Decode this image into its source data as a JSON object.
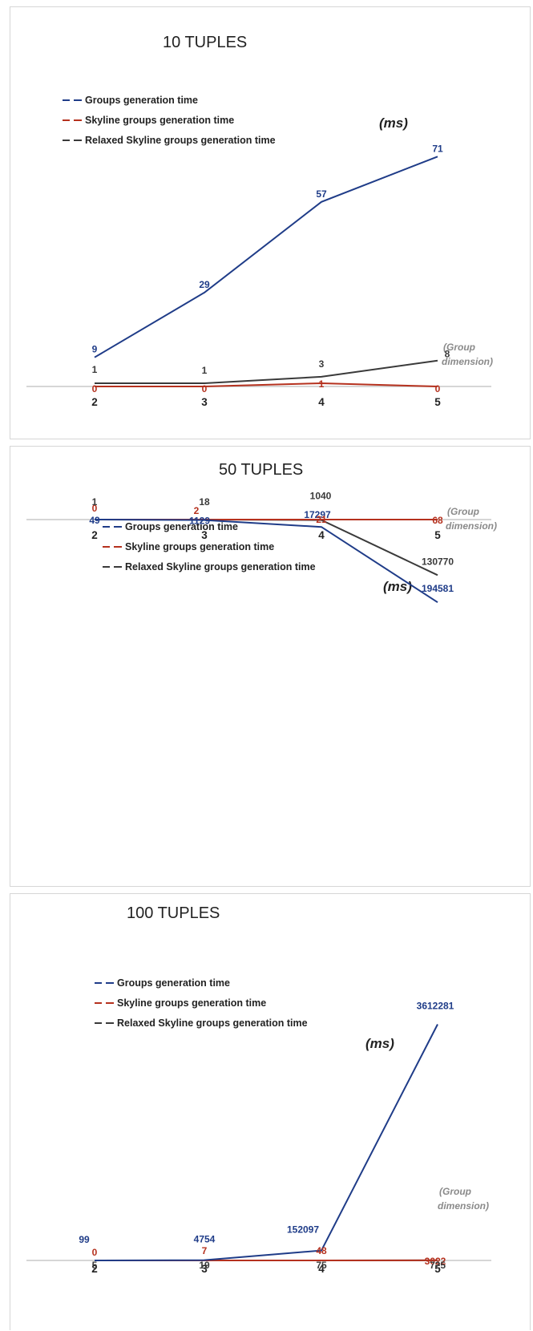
{
  "colors": {
    "groups": "#1f3c88",
    "skyline": "#b5311e",
    "relaxed": "#3a3a3a",
    "axis": "#c8c8c8"
  },
  "chart_data": [
    {
      "type": "line",
      "title": "10 TUPLES",
      "unit_label": "(ms)",
      "xlabel": "(Group dimension)",
      "x": [
        "2",
        "3",
        "4",
        "5"
      ],
      "ylim": [
        0,
        78
      ],
      "series": [
        {
          "name": "Groups generation time",
          "values": [
            9,
            29,
            57,
            71
          ],
          "labels": [
            "9",
            "29",
            "57",
            "71"
          ]
        },
        {
          "name": "Skyline groups generation time",
          "values": [
            0,
            0,
            1,
            0
          ],
          "labels": [
            "0",
            "0",
            "1",
            "0"
          ]
        },
        {
          "name": "Relaxed Skyline groups generation time",
          "values": [
            1,
            1,
            3,
            8
          ],
          "labels": [
            "1",
            "1",
            "3",
            "8"
          ]
        }
      ]
    },
    {
      "type": "line",
      "title": "50 TUPLES",
      "unit_label": "(ms)",
      "xlabel": "(Group dimension)",
      "x": [
        "2",
        "3",
        "4",
        "5"
      ],
      "ylim": [
        0,
        215000
      ],
      "series": [
        {
          "name": "Groups generation time",
          "values": [
            49,
            1129,
            17297,
            194581
          ],
          "labels": [
            "49",
            "1129",
            "17297",
            "194581"
          ]
        },
        {
          "name": "Skyline groups generation time",
          "values": [
            0,
            2,
            21,
            68
          ],
          "labels": [
            "0",
            "2",
            "21",
            "68"
          ]
        },
        {
          "name": "Relaxed Skyline groups generation time",
          "values": [
            1,
            18,
            1040,
            130770
          ],
          "labels": [
            "1",
            "18",
            "1040",
            "130770"
          ]
        }
      ]
    },
    {
      "type": "line",
      "title": "100 TUPLES",
      "unit_label": "(ms)",
      "xlabel": "(Group dimension)",
      "x": [
        "2",
        "3",
        "4",
        "5"
      ],
      "ylim": [
        0,
        3950000
      ],
      "series": [
        {
          "name": "Groups generation time",
          "values": [
            99,
            4754,
            152097,
            3612281
          ],
          "labels": [
            "99",
            "4754",
            "152097",
            "3612281"
          ]
        },
        {
          "name": "Skyline groups generation time",
          "values": [
            0,
            7,
            48,
            3022
          ],
          "labels": [
            "0",
            "7",
            "48",
            "3022"
          ]
        },
        {
          "name": "Relaxed Skyline groups generation time",
          "values": [
            5,
            19,
            75,
            725
          ],
          "labels": [
            "5",
            "19",
            "75",
            "725"
          ]
        }
      ]
    }
  ]
}
